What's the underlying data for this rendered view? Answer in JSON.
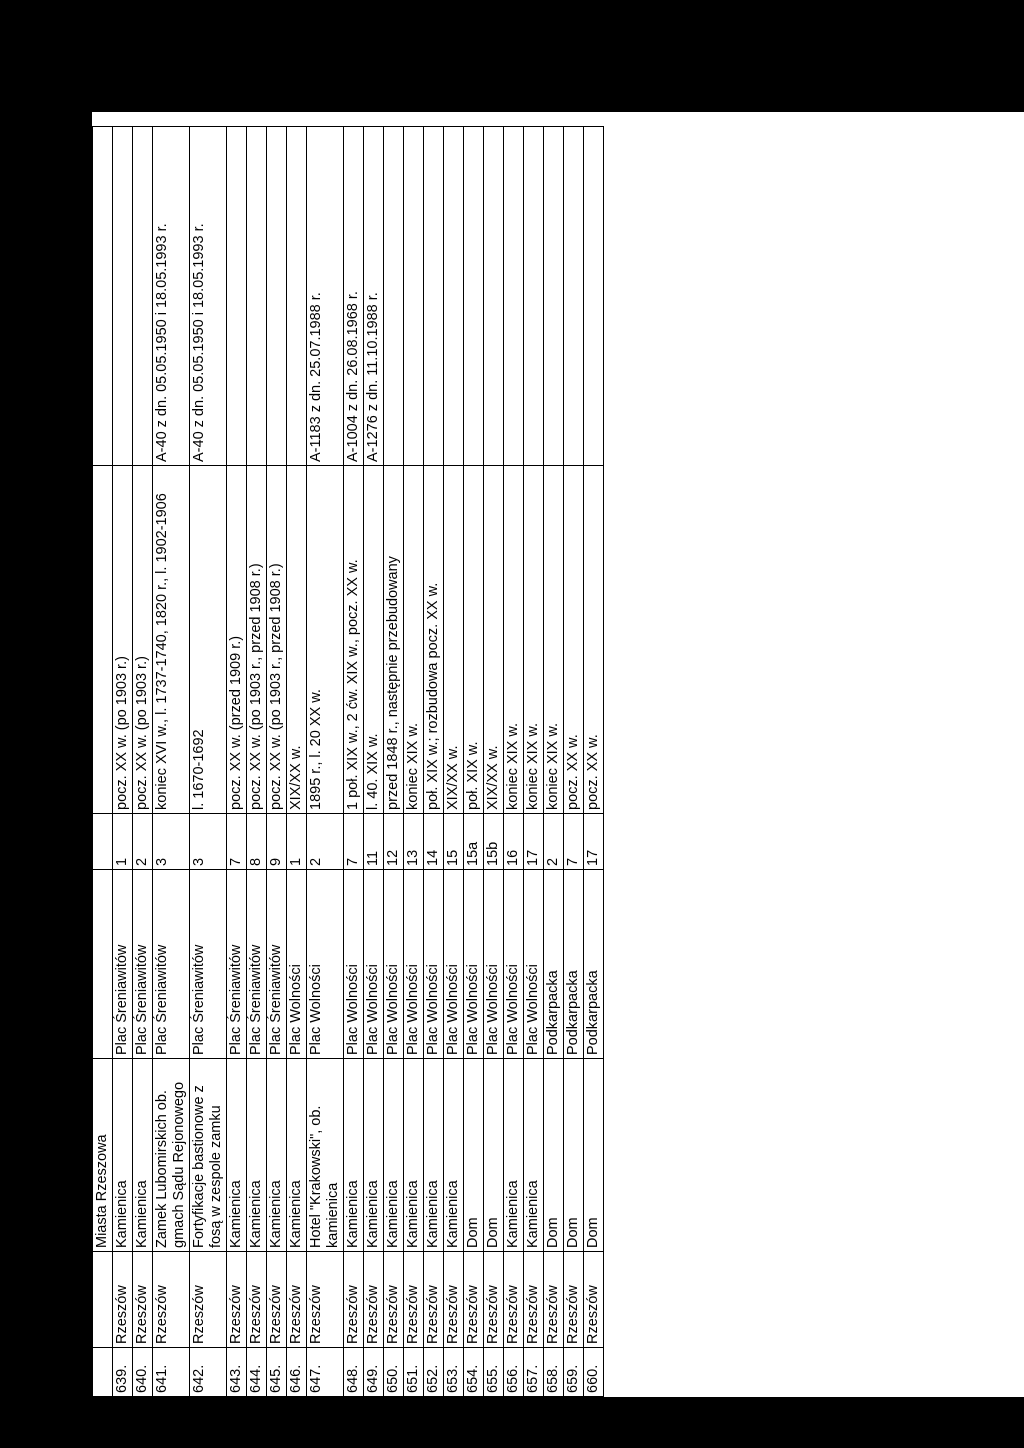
{
  "header": {
    "section": "Miasta Rzeszowa"
  },
  "rows": [
    {
      "no": "639.",
      "city": "Rzeszów",
      "object": "Kamienica",
      "street": "Plac Śreniawitów",
      "number": "1",
      "dating": "pocz. XX w. (po 1903 r.)",
      "register": ""
    },
    {
      "no": "640.",
      "city": "Rzeszów",
      "object": "Kamienica",
      "street": "Plac Śreniawitów",
      "number": "2",
      "dating": "pocz. XX w. (po 1903 r.)",
      "register": ""
    },
    {
      "no": "641.",
      "city": "Rzeszów",
      "object": "Zamek Lubomirskich ob. gmach Sądu Rejonowego",
      "street": "Plac Śreniawitów",
      "number": "3",
      "dating": "koniec XVI w., l. 1737-1740, 1820 r., l. 1902-1906",
      "register": "A-40 z dn. 05.05.1950 i 18.05.1993 r."
    },
    {
      "no": "642.",
      "city": "Rzeszów",
      "object": "Fortyfikacje bastionowe z fosą w zespole zamku",
      "street": "Plac Śreniawitów",
      "number": "3",
      "dating": "l. 1670-1692",
      "register": "A-40 z dn. 05.05.1950 i 18.05.1993 r."
    },
    {
      "no": "643.",
      "city": "Rzeszów",
      "object": "Kamienica",
      "street": "Plac Śreniawitów",
      "number": "7",
      "dating": "pocz. XX w. (przed 1909 r.)",
      "register": ""
    },
    {
      "no": "644.",
      "city": "Rzeszów",
      "object": "Kamienica",
      "street": "Plac Śreniawitów",
      "number": "8",
      "dating": "pocz. XX w. (po 1903 r., przed 1908 r.)",
      "register": ""
    },
    {
      "no": "645.",
      "city": "Rzeszów",
      "object": "Kamienica",
      "street": "Plac Śreniawitów",
      "number": "9",
      "dating": "pocz. XX w. (po 1903 r., przed 1908 r.)",
      "register": ""
    },
    {
      "no": "646.",
      "city": "Rzeszów",
      "object": "Kamienica",
      "street": "Plac Wolności",
      "number": "1",
      "dating": "XIX/XX w.",
      "register": ""
    },
    {
      "no": "647.",
      "city": "Rzeszów",
      "object": "Hotel \"Krakowski\", ob. kamienica",
      "street": "Plac Wolności",
      "number": "2",
      "dating": "1895 r., l. 20 XX w.",
      "register": "A-1183 z dn. 25.07.1988 r."
    },
    {
      "no": "648.",
      "city": "Rzeszów",
      "object": "Kamienica",
      "street": "Plac Wolności",
      "number": "7",
      "dating": "1 poł. XIX w., 2 ćw. XIX w., pocz. XX w.",
      "register": "A-1004 z dn. 26.08.1968 r."
    },
    {
      "no": "649.",
      "city": "Rzeszów",
      "object": "Kamienica",
      "street": "Plac Wolności",
      "number": "11",
      "dating": "l. 40. XIX w.",
      "register": "A-1276 z dn. 11.10.1988 r."
    },
    {
      "no": "650.",
      "city": "Rzeszów",
      "object": "Kamienica",
      "street": "Plac Wolności",
      "number": "12",
      "dating": "przed 1848 r., następnie przebudowany",
      "register": ""
    },
    {
      "no": "651.",
      "city": "Rzeszów",
      "object": "Kamienica",
      "street": "Plac Wolności",
      "number": "13",
      "dating": "koniec XIX w.",
      "register": ""
    },
    {
      "no": "652.",
      "city": "Rzeszów",
      "object": "Kamienica",
      "street": "Plac Wolności",
      "number": "14",
      "dating": "poł. XIX w.; rozbudowa pocz. XX w.",
      "register": ""
    },
    {
      "no": "653.",
      "city": "Rzeszów",
      "object": "Kamienica",
      "street": "Plac Wolności",
      "number": "15",
      "dating": "XIX/XX w.",
      "register": ""
    },
    {
      "no": "654.",
      "city": "Rzeszów",
      "object": "Dom",
      "street": "Plac Wolności",
      "number": "15a",
      "dating": "poł. XIX w.",
      "register": ""
    },
    {
      "no": "655.",
      "city": "Rzeszów",
      "object": "Dom",
      "street": "Plac Wolności",
      "number": "15b",
      "dating": "XIX/XX w.",
      "register": ""
    },
    {
      "no": "656.",
      "city": "Rzeszów",
      "object": "Kamienica",
      "street": "Plac Wolności",
      "number": "16",
      "dating": "koniec XIX w.",
      "register": ""
    },
    {
      "no": "657.",
      "city": "Rzeszów",
      "object": "Kamienica",
      "street": "Plac Wolności",
      "number": "17",
      "dating": "koniec XIX w.",
      "register": ""
    },
    {
      "no": "658.",
      "city": "Rzeszów",
      "object": "Dom",
      "street": "Podkarpacka",
      "number": "2",
      "dating": "koniec XIX w.",
      "register": ""
    },
    {
      "no": "659.",
      "city": "Rzeszów",
      "object": "Dom",
      "street": "Podkarpacka",
      "number": "7",
      "dating": "pocz. XX w.",
      "register": ""
    },
    {
      "no": "660.",
      "city": "Rzeszów",
      "object": "Dom",
      "street": "Podkarpacka",
      "number": "17",
      "dating": "pocz. XX w.",
      "register": ""
    }
  ]
}
